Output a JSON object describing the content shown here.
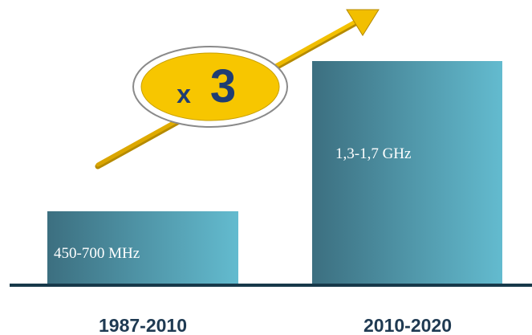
{
  "badge": {
    "prefix": "x",
    "factor": "3"
  },
  "bars": [
    {
      "label": "450-700 MHz",
      "category": "1987-2010"
    },
    {
      "label": "1,3-1,7 GHz",
      "category": "2010-2020"
    }
  ]
}
